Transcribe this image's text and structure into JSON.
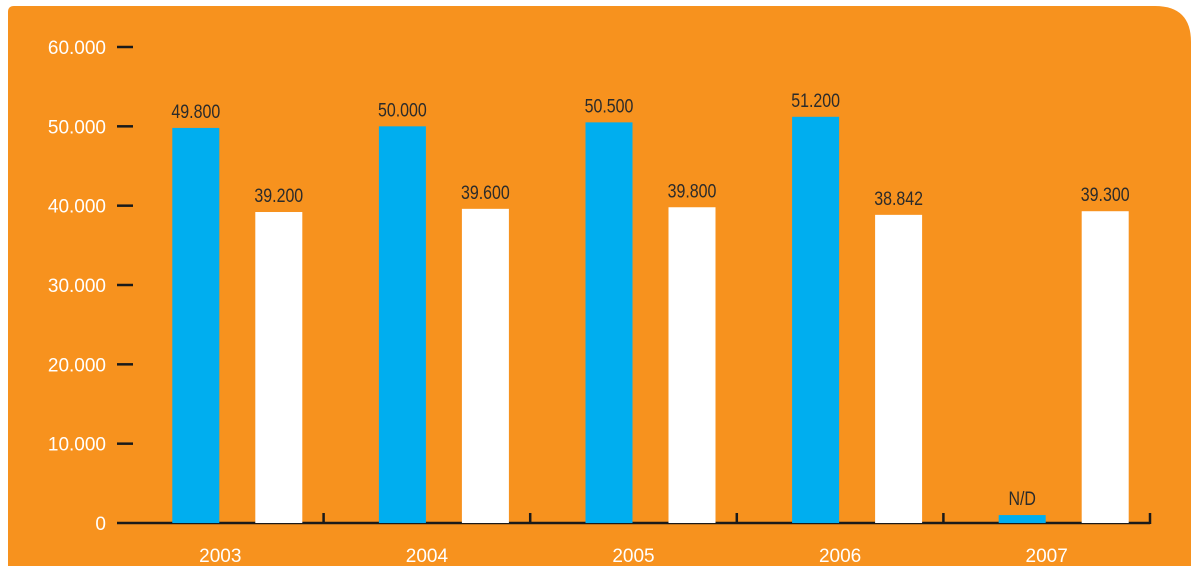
{
  "colors": {
    "background": "#f7921e",
    "series_a": "#00aeef",
    "series_b": "#ffffff",
    "axis": "#1a1a1a",
    "tick_text": "#ffffff",
    "data_label_text": "#2b2b2b"
  },
  "chart_data": {
    "type": "bar",
    "title": "",
    "xlabel": "",
    "ylabel": "",
    "categories": [
      "2003",
      "2004",
      "2005",
      "2006",
      "2007"
    ],
    "ylim": [
      0,
      60000
    ],
    "yticks": [
      0,
      10000,
      20000,
      30000,
      40000,
      50000,
      60000
    ],
    "ytick_labels": [
      "0",
      "10.000",
      "20.000",
      "30.000",
      "40.000",
      "50.000",
      "60.000"
    ],
    "grid": false,
    "legend": "none",
    "series": [
      {
        "color": "#00aeef",
        "values": [
          49800,
          50000,
          50500,
          51200,
          1000
        ],
        "labels": [
          "49.800",
          "50.000",
          "50.500",
          "51.200",
          "N/D"
        ]
      },
      {
        "color": "#ffffff",
        "values": [
          39200,
          39600,
          39800,
          38842,
          39300
        ],
        "labels": [
          "39.200",
          "39.600",
          "39.800",
          "38.842",
          "39.300"
        ]
      }
    ]
  }
}
